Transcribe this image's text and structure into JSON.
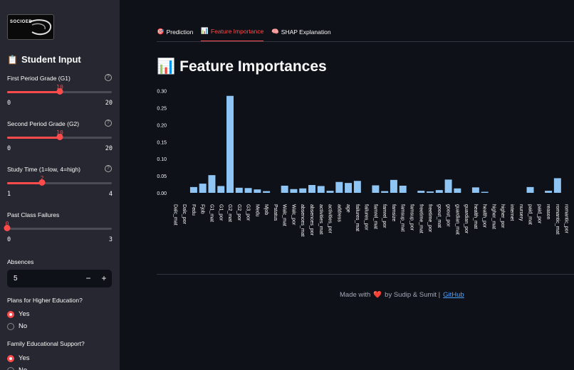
{
  "sidebar": {
    "logo_text": "SOCIOED",
    "title": "Student Input",
    "title_icon": "📋",
    "sliders": [
      {
        "label": "First Period Grade (G1)",
        "value": "10",
        "min": "0",
        "max": "20",
        "fraction": 0.5,
        "has_help": true
      },
      {
        "label": "Second Period Grade (G2)",
        "value": "10",
        "min": "0",
        "max": "20",
        "fraction": 0.5,
        "has_help": true
      },
      {
        "label": "Study Time (1=low, 4=high)",
        "value": "2",
        "min": "1",
        "max": "4",
        "fraction": 0.333,
        "has_help": true
      },
      {
        "label": "Past Class Failures",
        "value": "0",
        "min": "0",
        "max": "3",
        "fraction": 0.0,
        "has_help": false
      }
    ],
    "absences": {
      "label": "Absences",
      "value": "5",
      "minus": "−",
      "plus": "+"
    },
    "higher_ed": {
      "question": "Plans for Higher Education?",
      "options": [
        "Yes",
        "No"
      ],
      "selected": "Yes"
    },
    "family_support": {
      "question": "Family Educational Support?",
      "options": [
        "Yes",
        "No"
      ],
      "selected": "Yes"
    }
  },
  "tabs": [
    {
      "label": "Prediction",
      "icon": "🎯",
      "active": false
    },
    {
      "label": "Feature Importance",
      "icon": "📊",
      "active": true
    },
    {
      "label": "SHAP Explanation",
      "icon": "🧠",
      "active": false
    }
  ],
  "heading": {
    "text": "Feature Importances",
    "icon": "📊"
  },
  "chart_data": {
    "type": "bar",
    "title": "",
    "xlabel": "",
    "ylabel": "",
    "ylim": [
      0,
      0.32
    ],
    "yticks": [
      "0.00",
      "0.05",
      "0.10",
      "0.15",
      "0.20",
      "0.25",
      "0.30"
    ],
    "bar_color": "#8ec5f5",
    "categories": [
      "Dalc_mat",
      "Dalc_por",
      "Fedu",
      "Fjob",
      "G1_mat",
      "G1_por",
      "G2_mat",
      "G2_por",
      "G3_por",
      "Medu",
      "Mjob",
      "Pstatus",
      "Walc_mat",
      "Walc_por",
      "absences_mat",
      "absences_por",
      "activities_mat",
      "activities_por",
      "address",
      "age",
      "failures_mat",
      "failures_por",
      "famrel_mat",
      "famrel_por",
      "famsize",
      "famsup_mat",
      "famsup_por",
      "freetime_mat",
      "freetime_por",
      "goout_mat",
      "goout_por",
      "guardian_mat",
      "guardian_por",
      "health_mat",
      "health_por",
      "higher_mat",
      "higher_por",
      "internet",
      "nursery",
      "paid_mat",
      "paid_por",
      "reason",
      "romantic_mat",
      "romantic_por"
    ],
    "values": [
      0.0,
      0.0,
      0.017,
      0.027,
      0.052,
      0.02,
      0.285,
      0.015,
      0.014,
      0.01,
      0.005,
      0.0,
      0.021,
      0.011,
      0.013,
      0.023,
      0.02,
      0.006,
      0.032,
      0.029,
      0.035,
      0.0,
      0.022,
      0.005,
      0.038,
      0.021,
      0.0,
      0.006,
      0.004,
      0.008,
      0.039,
      0.013,
      0.0,
      0.016,
      0.003,
      0.0,
      0.0,
      0.0,
      0.0,
      0.017,
      0.0,
      0.006,
      0.043,
      0.0
    ]
  },
  "footer": {
    "prefix": "Made with",
    "heart": "❤️",
    "suffix": "by Sudip & Sumit |",
    "link": "GitHub"
  }
}
